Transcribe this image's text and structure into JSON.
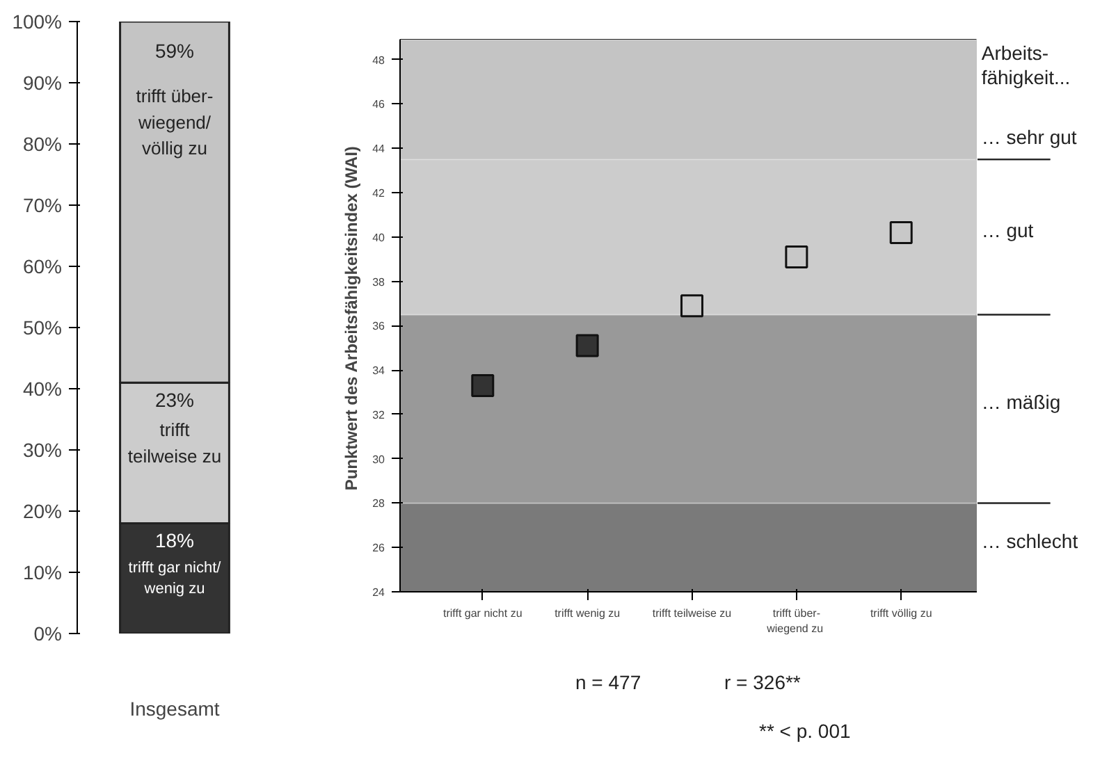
{
  "chart_data": [
    {
      "type": "bar",
      "stacked": true,
      "categories": [
        "Insgesamt"
      ],
      "ylim": [
        0,
        100
      ],
      "yticks": [
        {
          "value": 0,
          "label": "0%"
        },
        {
          "value": 10,
          "label": "10%"
        },
        {
          "value": 20,
          "label": "20%"
        },
        {
          "value": 30,
          "label": "30%"
        },
        {
          "value": 40,
          "label": "40%"
        },
        {
          "value": 50,
          "label": "50%"
        },
        {
          "value": 60,
          "label": "60%"
        },
        {
          "value": 70,
          "label": "70%"
        },
        {
          "value": 80,
          "label": "80%"
        },
        {
          "value": 90,
          "label": "90%"
        },
        {
          "value": 100,
          "label": "100%"
        }
      ],
      "series": [
        {
          "name": "trifft gar nicht/\nwenig zu",
          "color": "#333333",
          "values": [
            18
          ],
          "value_labels": [
            "18%"
          ]
        },
        {
          "name": "trifft\nteilweise zu",
          "color": "#cccccc",
          "values": [
            23
          ],
          "value_labels": [
            "23%"
          ]
        },
        {
          "name": "trifft über-\nwiegend/\nvöllig zu",
          "color": "#c4c4c4",
          "values": [
            59
          ],
          "value_labels": [
            "59%"
          ]
        }
      ],
      "grid": false,
      "legend": false
    },
    {
      "type": "scatter",
      "categories": [
        "trifft gar nicht zu",
        "trifft wenig zu",
        "trifft teilweise zu",
        "trifft über-\nwiegend  zu",
        "trifft völlig zu"
      ],
      "values": [
        33.3,
        35.1,
        36.9,
        39.1,
        40.2
      ],
      "colors": [
        "#333333",
        "#333333",
        "#c8c8c8",
        "#c8c8c8",
        "#c8c8c8"
      ],
      "marker": "square",
      "ylabel": "Punktwert des Arbeitsfähigkeitsindex  (WAI)",
      "ylim": [
        24,
        48.9
      ],
      "yticks": [
        24,
        26,
        28,
        30,
        32,
        34,
        36,
        38,
        40,
        42,
        44,
        46,
        48
      ],
      "bands": [
        {
          "axis": "y",
          "from": 24,
          "to": 28,
          "label": "… schlecht",
          "color": "#7a7a7a"
        },
        {
          "axis": "y",
          "from": 28,
          "to": 36.5,
          "label": "… mäßig",
          "color": "#999999"
        },
        {
          "axis": "y",
          "from": 36.5,
          "to": 43.5,
          "label": "… gut",
          "color": "#cccccc"
        },
        {
          "axis": "y",
          "from": 43.5,
          "to": 48.9,
          "label": "… sehr gut",
          "color": "#c4c4c4"
        }
      ],
      "annotations": [
        "Arbeits-\nfähigkeit...",
        "n = 477",
        "r = 326**",
        "** < p. 001"
      ],
      "grid": false,
      "legend": false
    }
  ]
}
